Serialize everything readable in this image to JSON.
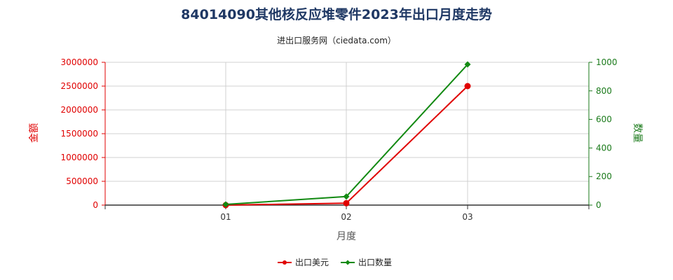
{
  "chart_data": {
    "type": "line",
    "title": "84014090其他核反应堆零件2023年出口月度走势",
    "subtitle": "进出口服务网（ciedata.com）",
    "xlabel": "月度",
    "ylabel_left": "金额",
    "ylabel_right": "数量",
    "categories": [
      "01",
      "02",
      "03"
    ],
    "y_left": {
      "min": 0,
      "max": 3000000,
      "ticks": [
        "0",
        "500000",
        "1000000",
        "1500000",
        "2000000",
        "2500000",
        "3000000"
      ]
    },
    "y_right": {
      "min": 0,
      "max": 1000,
      "ticks": [
        "0",
        "200",
        "400",
        "600",
        "800",
        "1000"
      ]
    },
    "grid": true,
    "legend_position": "bottom",
    "series": [
      {
        "name": "出口美元",
        "axis": "left",
        "color": "#e00000",
        "marker": "circle",
        "values": [
          0,
          40000,
          2500000
        ]
      },
      {
        "name": "出口数量",
        "axis": "right",
        "color": "#138a13",
        "marker": "diamond",
        "values": [
          5,
          60,
          985
        ]
      }
    ]
  }
}
